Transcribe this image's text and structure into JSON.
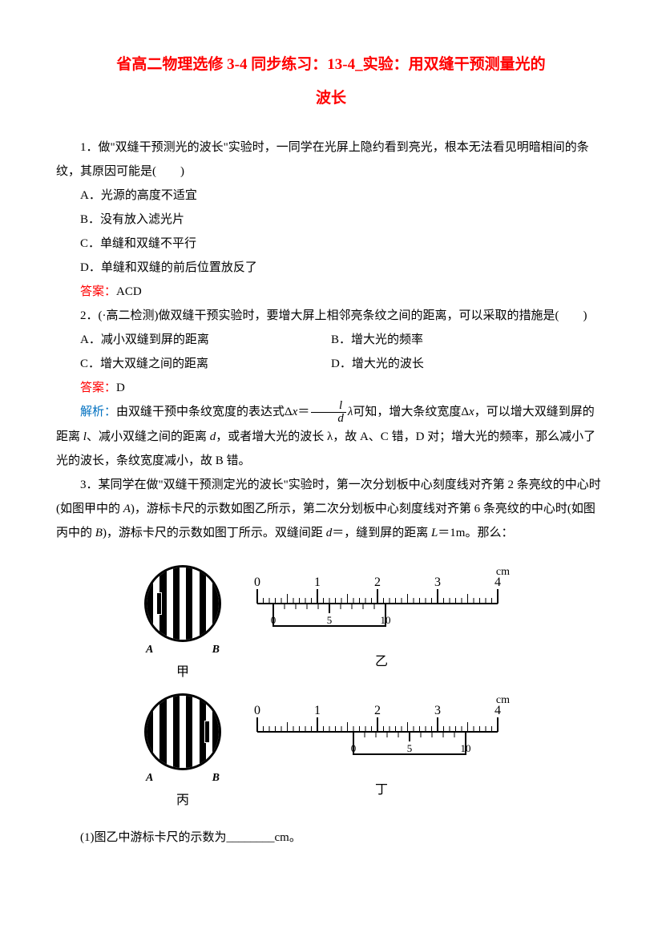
{
  "title": {
    "line1": "省高二物理选修 3-4 同步练习：13-4_实验：用双缝干预测量光的",
    "line2": "波长"
  },
  "q1": {
    "stem": "1．做\"双缝干预测光的波长\"实验时，一同学在光屏上隐约看到亮光，根本无法看见明暗相间的条纹，其原因可能是(　　)",
    "optA": "A．光源的高度不适宜",
    "optB": "B．没有放入滤光片",
    "optC": "C．单缝和双缝不平行",
    "optD": "D．单缝和双缝的前后位置放反了",
    "ansLabel": "答案：",
    "ansText": "ACD"
  },
  "q2": {
    "stem": "2．(·高二检测)做双缝干预实验时，要增大屏上相邻亮条纹之间的距离，可以采取的措施是(　　)",
    "optA": "A．减小双缝到屏的距离",
    "optB": "B．增大光的频率",
    "optC": "C．增大双缝之间的距离",
    "optD": "D．增大光的波长",
    "ansLabel": "答案：",
    "ansText": "D",
    "analysisLabel": "解析：",
    "analysisPre": "由双缝干预中条纹宽度的表达式Δ",
    "analysisVarX": "x",
    "analysisEq": "＝",
    "fracNum": "l",
    "fracDen": "d",
    "analysisLambda": "λ",
    "analysisPost1": "可知，增大条纹宽度Δ",
    "analysisPost2": "，可以增大双缝到屏的距离 ",
    "analysisL": "l",
    "analysisPost3": "、减小双缝之间的距离 ",
    "analysisD": "d",
    "analysisPost4": "，或者增大光的波长 λ，故 A、C 错，D 对；增大光的频率，那么减小了光的波长，条纹宽度减小，故 B 错。"
  },
  "q3": {
    "stemA": "3．某同学在做\"双缝干预测定光的波长\"实验时，第一次分划板中心刻度线对齐第 2 条亮纹的中心时(如图甲中的 ",
    "A": "A",
    "stemB": ")，游标卡尺的示数如图乙所示，第二次分划板中心刻度线对齐第 6 条亮纹的中心时(如图丙中的 ",
    "B": "B",
    "stemC": ")，游标卡尺的示数如图丁所示。双缝间距 ",
    "dEq": "d",
    "stemD": "＝，缝到屏的距离 ",
    "LEq": "L",
    "stemE": "＝1m。那么：",
    "sub1": "(1)图乙中游标卡尺的示数为________cm。"
  },
  "figures": {
    "jia": {
      "labelA": "A",
      "labelB": "B",
      "caption": "甲",
      "markerLeft": 12
    },
    "bing": {
      "labelA": "A",
      "labelB": "B",
      "caption": "丙",
      "markerLeft": 72
    },
    "yi": {
      "caption": "乙",
      "cmLabel": "cm",
      "mainNums": [
        "0",
        "1",
        "2",
        "3",
        "4"
      ],
      "subNums": [
        "0",
        "5",
        "10"
      ],
      "subOffset": 20
    },
    "ding": {
      "caption": "丁",
      "cmLabel": "cm",
      "mainNums": [
        "0",
        "1",
        "2",
        "3",
        "4"
      ],
      "subNums": [
        "0",
        "5",
        "10"
      ],
      "subOffset": 120
    }
  },
  "colors": {
    "titleColor": "#ff0000",
    "answerColor": "#ff0000",
    "analysisColor": "#0070c0",
    "textColor": "#000000",
    "background": "#ffffff"
  }
}
